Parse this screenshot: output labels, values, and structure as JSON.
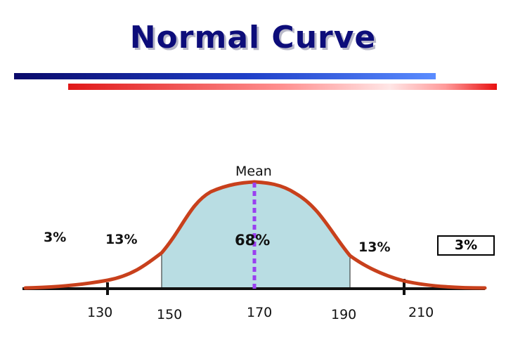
{
  "title": "Normal Curve",
  "mean_label": "Mean",
  "regions": {
    "left_tail": "3%",
    "left_mid": "13%",
    "center": "68%",
    "right_mid": "13%",
    "right_tail": "3%"
  },
  "ticks": [
    "130",
    "150",
    "170",
    "190",
    "210"
  ],
  "colors": {
    "curve": "#c8401c",
    "shaded": "#b9dde3",
    "mean_line": "#9a40f0",
    "title": "#0d0d7a"
  }
}
